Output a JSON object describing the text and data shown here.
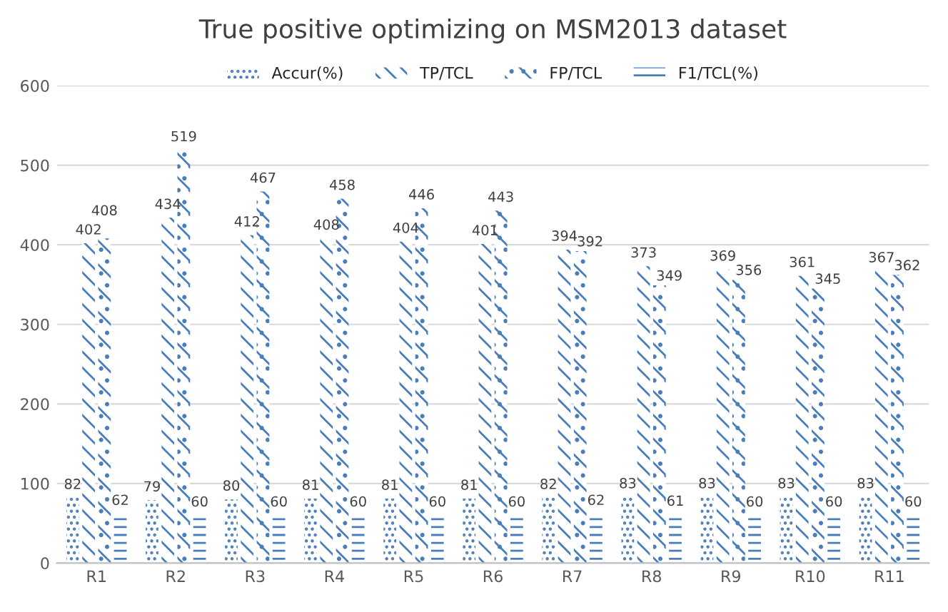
{
  "chart_data": {
    "type": "bar",
    "title": "True positive optimizing on MSM2013 dataset",
    "categories": [
      "R1",
      "R2",
      "R3",
      "R4",
      "R5",
      "R6",
      "R7",
      "R8",
      "R9",
      "R10",
      "R11"
    ],
    "series": [
      {
        "name": "Accur(%)",
        "color": "#4a7ebb",
        "values": [
          82,
          79,
          80,
          81,
          81,
          81,
          82,
          83,
          83,
          83,
          83
        ]
      },
      {
        "name": "TP/TCL",
        "color": "#4a7ebb",
        "values": [
          402,
          434,
          412,
          408,
          404,
          401,
          394,
          373,
          369,
          361,
          367
        ]
      },
      {
        "name": "FP/TCL",
        "color": "#4a7ebb",
        "values": [
          408,
          519,
          467,
          458,
          446,
          443,
          392,
          349,
          356,
          345,
          362
        ]
      },
      {
        "name": "F1/TCL(%)",
        "color": "#4a7ebb",
        "values": [
          62,
          60,
          60,
          60,
          60,
          60,
          62,
          61,
          60,
          60,
          60
        ]
      }
    ],
    "ylim": [
      0,
      600
    ],
    "yticks": [
      0,
      100,
      200,
      300,
      400,
      500,
      600
    ],
    "grid": "y",
    "legend": "top",
    "data_labels": true
  }
}
